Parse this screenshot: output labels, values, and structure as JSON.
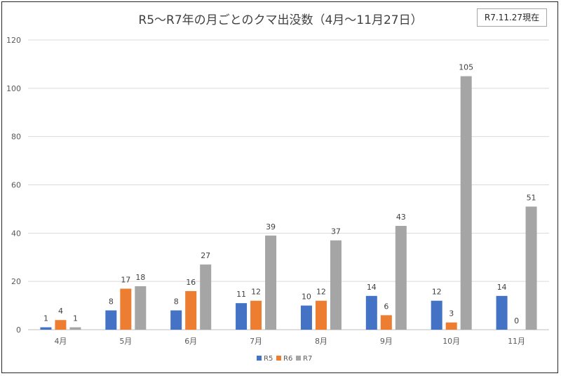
{
  "chart_data": {
    "type": "bar",
    "title": "R5〜R7年の月ごとのクマ出没数（4月〜11月27日）",
    "date_note": "R7.11.27現在",
    "categories": [
      "4月",
      "5月",
      "6月",
      "7月",
      "8月",
      "9月",
      "10月",
      "11月"
    ],
    "series": [
      {
        "name": "R5",
        "color": "#4472C4",
        "values": [
          1,
          8,
          8,
          11,
          10,
          14,
          12,
          14
        ]
      },
      {
        "name": "R6",
        "color": "#ED7D31",
        "values": [
          4,
          17,
          16,
          12,
          12,
          6,
          3,
          0
        ]
      },
      {
        "name": "R7",
        "color": "#A5A5A5",
        "values": [
          1,
          18,
          27,
          39,
          37,
          43,
          105,
          51
        ]
      }
    ],
    "y_ticks": [
      0,
      20,
      40,
      60,
      80,
      100,
      120
    ],
    "ylim": [
      0,
      120
    ],
    "xlabel": "",
    "ylabel": "",
    "grid": true,
    "legend": "bottom-center"
  }
}
